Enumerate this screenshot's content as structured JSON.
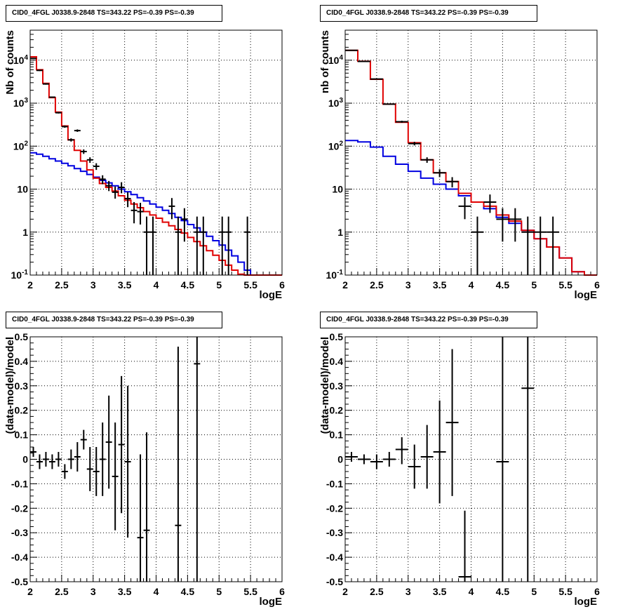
{
  "colors": {
    "data": "#000000",
    "model_total": "#e00000",
    "model_bkg": "#0000e0",
    "grid": "#000000"
  },
  "panels": [
    {
      "title": "CID0_4FGL J0338.9-2848 TS=343.22 PS=-0.39 PS=-0.39",
      "chart_data": {
        "type": "histogram",
        "xlabel": "logE",
        "ylabel": "Nb of counts",
        "xlim": [
          2,
          6
        ],
        "ylim": [
          0.1,
          50000
        ],
        "yscale": "log",
        "grid": true,
        "x_ticks": [
          2,
          2.5,
          3,
          3.5,
          4,
          4.5,
          5,
          5.5,
          6
        ],
        "y_ticks": [
          0.1,
          1,
          10,
          100,
          1000,
          10000
        ],
        "y_tick_labels": [
          "10^-1",
          "1",
          "10",
          "10^2",
          "10^3",
          "10^4"
        ],
        "model_total": {
          "bin_edges": [
            2.0,
            2.1,
            2.2,
            2.3,
            2.4,
            2.5,
            2.6,
            2.7,
            2.8,
            2.9,
            3.0,
            3.1,
            3.2,
            3.3,
            3.4,
            3.5,
            3.6,
            3.7,
            3.8,
            3.9,
            4.0,
            4.1,
            4.2,
            4.3,
            4.4,
            4.5,
            4.6,
            4.7,
            4.8,
            4.9,
            5.0,
            5.1,
            5.2,
            5.3,
            5.4,
            5.5,
            5.6,
            5.7,
            5.8,
            5.9,
            6.0
          ],
          "values": [
            12000,
            6000,
            2900,
            1350,
            620,
            295,
            140,
            80,
            45,
            28,
            18,
            13.5,
            11,
            9,
            7,
            5.5,
            4.5,
            3.7,
            3.0,
            2.5,
            2.1,
            1.7,
            1.4,
            1.15,
            0.95,
            0.75,
            0.6,
            0.48,
            0.37,
            0.29,
            0.22,
            0.17,
            0.13,
            0.105,
            0.1,
            0.1,
            0.1,
            0.1,
            0.1,
            0.1
          ]
        },
        "model_bkg": {
          "values": [
            70,
            65,
            58,
            51,
            45,
            40,
            35,
            30,
            26,
            22,
            19,
            16,
            14,
            12,
            10,
            8.7,
            7.5,
            6.3,
            5.3,
            4.5,
            3.8,
            3.2,
            2.7,
            2.2,
            1.85,
            1.5,
            1.25,
            1.0,
            0.8,
            0.63,
            0.5,
            0.38,
            0.28,
            0.2,
            0.13,
            0.1,
            0.1,
            0.1,
            0.1,
            0.1
          ]
        },
        "points": [
          {
            "x": 2.05,
            "y": 11000,
            "ylo": 10800,
            "yhi": 11200
          },
          {
            "x": 2.15,
            "y": 5800,
            "ylo": 5600,
            "yhi": 6000
          },
          {
            "x": 2.25,
            "y": 2800,
            "ylo": 2700,
            "yhi": 2900
          },
          {
            "x": 2.35,
            "y": 1380,
            "ylo": 1340,
            "yhi": 1420
          },
          {
            "x": 2.45,
            "y": 600,
            "ylo": 575,
            "yhi": 625
          },
          {
            "x": 2.55,
            "y": 285,
            "ylo": 268,
            "yhi": 302
          },
          {
            "x": 2.65,
            "y": 140,
            "ylo": 128,
            "yhi": 152
          },
          {
            "x": 2.75,
            "y": 230,
            "ylo": 215,
            "yhi": 245
          },
          {
            "x": 2.85,
            "y": 75,
            "ylo": 66,
            "yhi": 84
          },
          {
            "x": 2.95,
            "y": 48,
            "ylo": 41,
            "yhi": 55
          },
          {
            "x": 3.05,
            "y": 34,
            "ylo": 28,
            "yhi": 40
          },
          {
            "x": 3.15,
            "y": 17,
            "ylo": 13,
            "yhi": 21
          },
          {
            "x": 3.25,
            "y": 12,
            "ylo": 9,
            "yhi": 15.5
          },
          {
            "x": 3.35,
            "y": 8.5,
            "ylo": 6,
            "yhi": 11.5
          },
          {
            "x": 3.45,
            "y": 11,
            "ylo": 8,
            "yhi": 14.5
          },
          {
            "x": 3.55,
            "y": 6,
            "ylo": 3.8,
            "yhi": 8.5
          },
          {
            "x": 3.65,
            "y": 3.2,
            "ylo": 1.6,
            "yhi": 5
          },
          {
            "x": 3.75,
            "y": 3.0,
            "ylo": 1.5,
            "yhi": 4.8
          },
          {
            "x": 3.85,
            "y": 1.0,
            "ylo": 0.1,
            "yhi": 2.3
          },
          {
            "x": 3.95,
            "y": 1.0,
            "ylo": 0.1,
            "yhi": 2.3
          },
          {
            "x": 4.25,
            "y": 4.0,
            "ylo": 2.0,
            "yhi": 6.2
          },
          {
            "x": 4.35,
            "y": 1.0,
            "ylo": 0.1,
            "yhi": 2.3
          },
          {
            "x": 4.45,
            "y": 2.0,
            "ylo": 0.6,
            "yhi": 3.6
          },
          {
            "x": 4.65,
            "y": 1.0,
            "ylo": 0.1,
            "yhi": 2.3
          },
          {
            "x": 4.75,
            "y": 1.0,
            "ylo": 0.1,
            "yhi": 2.3
          },
          {
            "x": 5.05,
            "y": 1.0,
            "ylo": 0.1,
            "yhi": 2.3
          },
          {
            "x": 5.15,
            "y": 1.0,
            "ylo": 0.1,
            "yhi": 2.3
          },
          {
            "x": 5.45,
            "y": 1.0,
            "ylo": 0.1,
            "yhi": 2.3
          }
        ]
      }
    },
    {
      "title": "CID0_4FGL J0338.9-2848 TS=343.22 PS=-0.39 PS=-0.39",
      "chart_data": {
        "type": "histogram",
        "xlabel": "logE",
        "ylabel": "nb of counts",
        "xlim": [
          2,
          6
        ],
        "ylim": [
          0.1,
          50000
        ],
        "yscale": "log",
        "grid": true,
        "x_ticks": [
          2,
          2.5,
          3,
          3.5,
          4,
          4.5,
          5,
          5.5,
          6
        ],
        "y_ticks": [
          0.1,
          1,
          10,
          100,
          1000,
          10000
        ],
        "y_tick_labels": [
          "10^-1",
          "1",
          "10",
          "10^2",
          "10^3",
          "10^4"
        ],
        "model_total": {
          "bin_edges": [
            2.0,
            2.2,
            2.4,
            2.6,
            2.8,
            3.0,
            3.2,
            3.4,
            3.6,
            3.8,
            4.0,
            4.2,
            4.4,
            4.6,
            4.8,
            5.0,
            5.2,
            5.4,
            5.6,
            5.8,
            6.0
          ],
          "values": [
            17000,
            9500,
            3600,
            950,
            360,
            120,
            48,
            24,
            15,
            8,
            5,
            4,
            2.5,
            1.8,
            1.1,
            0.7,
            0.45,
            0.25,
            0.12,
            0.1
          ]
        },
        "model_bkg": {
          "values": [
            135,
            125,
            95,
            58,
            38,
            26,
            18,
            13,
            10,
            7,
            5,
            3.5,
            2.2,
            1.6,
            1.1,
            0.7,
            0.45,
            0.25,
            0.12,
            0.1
          ]
        },
        "points": [
          {
            "x": 2.1,
            "y": 17000,
            "ylo": 16700,
            "yhi": 17300
          },
          {
            "x": 2.3,
            "y": 9400,
            "ylo": 9200,
            "yhi": 9600
          },
          {
            "x": 2.5,
            "y": 3650,
            "ylo": 3590,
            "yhi": 3710
          },
          {
            "x": 2.7,
            "y": 950,
            "ylo": 920,
            "yhi": 980
          },
          {
            "x": 2.9,
            "y": 370,
            "ylo": 350,
            "yhi": 390
          },
          {
            "x": 3.1,
            "y": 115,
            "ylo": 104,
            "yhi": 126
          },
          {
            "x": 3.3,
            "y": 48,
            "ylo": 41,
            "yhi": 55
          },
          {
            "x": 3.5,
            "y": 24,
            "ylo": 19,
            "yhi": 29
          },
          {
            "x": 3.7,
            "y": 15,
            "ylo": 11,
            "yhi": 19
          },
          {
            "x": 3.9,
            "y": 4,
            "ylo": 2,
            "yhi": 6.5
          },
          {
            "x": 4.1,
            "y": 1,
            "ylo": 0.1,
            "yhi": 2.3
          },
          {
            "x": 4.3,
            "y": 5,
            "ylo": 2.8,
            "yhi": 7.5
          },
          {
            "x": 4.5,
            "y": 2,
            "ylo": 0.6,
            "yhi": 3.6
          },
          {
            "x": 4.7,
            "y": 2,
            "ylo": 0.6,
            "yhi": 3.6
          },
          {
            "x": 4.9,
            "y": 1,
            "ylo": 0.1,
            "yhi": 2.3
          },
          {
            "x": 5.1,
            "y": 1,
            "ylo": 0.1,
            "yhi": 2.3
          },
          {
            "x": 5.3,
            "y": 1,
            "ylo": 0.1,
            "yhi": 2.3
          }
        ]
      }
    },
    {
      "title": "CID0_4FGL J0338.9-2848 TS=343.22 PS=-0.39 PS=-0.39",
      "chart_data": {
        "type": "scatter",
        "xlabel": "logE",
        "ylabel": "(data-model)/model",
        "xlim": [
          2,
          6
        ],
        "ylim": [
          -0.5,
          0.5
        ],
        "yscale": "linear",
        "grid": true,
        "x_ticks": [
          2,
          2.5,
          3,
          3.5,
          4,
          4.5,
          5,
          5.5,
          6
        ],
        "y_ticks": [
          -0.5,
          -0.4,
          -0.3,
          -0.2,
          -0.1,
          0,
          0.1,
          0.2,
          0.3,
          0.4,
          0.5
        ],
        "points": [
          {
            "x": 2.05,
            "y": 0.03,
            "ylo": 0.01,
            "yhi": 0.05
          },
          {
            "x": 2.15,
            "y": -0.01,
            "ylo": -0.04,
            "yhi": 0.02
          },
          {
            "x": 2.25,
            "y": 0.0,
            "ylo": -0.03,
            "yhi": 0.03
          },
          {
            "x": 2.35,
            "y": -0.01,
            "ylo": -0.04,
            "yhi": 0.02
          },
          {
            "x": 2.45,
            "y": 0.0,
            "ylo": -0.03,
            "yhi": 0.03
          },
          {
            "x": 2.55,
            "y": -0.05,
            "ylo": -0.08,
            "yhi": -0.02
          },
          {
            "x": 2.65,
            "y": 0.0,
            "ylo": -0.04,
            "yhi": 0.04
          },
          {
            "x": 2.75,
            "y": 0.01,
            "ylo": -0.05,
            "yhi": 0.07
          },
          {
            "x": 2.85,
            "y": 0.08,
            "ylo": 0.04,
            "yhi": 0.12
          },
          {
            "x": 2.95,
            "y": -0.04,
            "ylo": -0.13,
            "yhi": 0.05
          },
          {
            "x": 3.05,
            "y": -0.05,
            "ylo": -0.15,
            "yhi": 0.05
          },
          {
            "x": 3.15,
            "y": 0.0,
            "ylo": -0.15,
            "yhi": 0.15
          },
          {
            "x": 3.25,
            "y": 0.07,
            "ylo": -0.12,
            "yhi": 0.26
          },
          {
            "x": 3.35,
            "y": -0.07,
            "ylo": -0.29,
            "yhi": 0.15
          },
          {
            "x": 3.45,
            "y": 0.06,
            "ylo": -0.22,
            "yhi": 0.34
          },
          {
            "x": 3.55,
            "y": -0.01,
            "ylo": -0.32,
            "yhi": 0.3
          },
          {
            "x": 3.75,
            "y": -0.32,
            "ylo": -0.5,
            "yhi": 0.02
          },
          {
            "x": 3.85,
            "y": -0.29,
            "ylo": -0.5,
            "yhi": 0.11
          },
          {
            "x": 4.35,
            "y": -0.27,
            "ylo": -0.5,
            "yhi": 0.46
          },
          {
            "x": 4.65,
            "y": 0.39,
            "ylo": -0.5,
            "yhi": 0.5
          }
        ]
      }
    },
    {
      "title": "CID0_4FGL J0338.9-2848 TS=343.22 PS=-0.39 PS=-0.39",
      "chart_data": {
        "type": "scatter",
        "xlabel": "logE",
        "ylabel": "(data-model)/model",
        "xlim": [
          2,
          6
        ],
        "ylim": [
          -0.5,
          0.5
        ],
        "yscale": "linear",
        "grid": true,
        "x_ticks": [
          2,
          2.5,
          3,
          3.5,
          4,
          4.5,
          5,
          5.5,
          6
        ],
        "y_ticks": [
          -0.5,
          -0.4,
          -0.3,
          -0.2,
          -0.1,
          0,
          0.1,
          0.2,
          0.3,
          0.4,
          0.5
        ],
        "points": [
          {
            "x": 2.1,
            "y": 0.01,
            "ylo": -0.01,
            "yhi": 0.03
          },
          {
            "x": 2.3,
            "y": 0.0,
            "ylo": -0.02,
            "yhi": 0.02
          },
          {
            "x": 2.5,
            "y": -0.01,
            "ylo": -0.04,
            "yhi": 0.02
          },
          {
            "x": 2.7,
            "y": 0.0,
            "ylo": -0.03,
            "yhi": 0.03
          },
          {
            "x": 2.9,
            "y": 0.04,
            "ylo": -0.02,
            "yhi": 0.09
          },
          {
            "x": 3.1,
            "y": -0.03,
            "ylo": -0.12,
            "yhi": 0.06
          },
          {
            "x": 3.3,
            "y": 0.01,
            "ylo": -0.12,
            "yhi": 0.14
          },
          {
            "x": 3.5,
            "y": 0.03,
            "ylo": -0.18,
            "yhi": 0.24
          },
          {
            "x": 3.7,
            "y": 0.15,
            "ylo": -0.15,
            "yhi": 0.45
          },
          {
            "x": 3.9,
            "y": -0.48,
            "ylo": -0.5,
            "yhi": -0.21
          },
          {
            "x": 4.5,
            "y": -0.01,
            "ylo": -0.5,
            "yhi": 0.5
          },
          {
            "x": 4.9,
            "y": 0.29,
            "ylo": -0.5,
            "yhi": 0.5
          }
        ]
      }
    }
  ]
}
